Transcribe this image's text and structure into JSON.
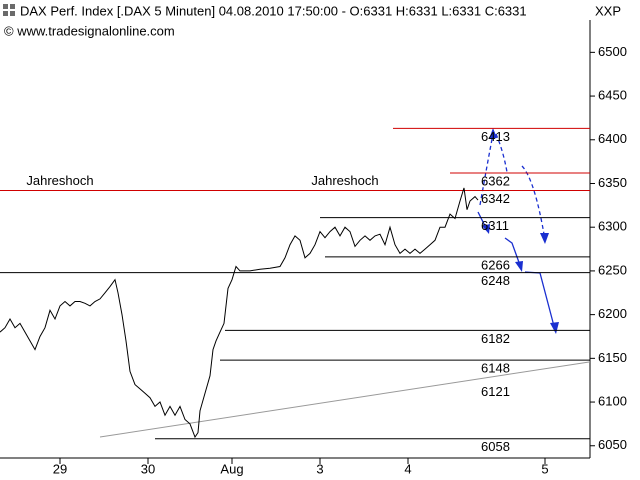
{
  "chart_data": {
    "type": "line",
    "title": "DAX Perf. Index [.DAX  5 Minuten] 04.08.2010 17:50:00 - O:6331 H:6331 L:6331 C:6331",
    "symbol": "XXP",
    "watermark": "© www.tradesignalonline.com",
    "color": "#000000",
    "xlim": [
      0,
      590
    ],
    "ylim": [
      6036,
      6537
    ],
    "yticks": [
      6050,
      6100,
      6150,
      6200,
      6250,
      6300,
      6350,
      6400,
      6450,
      6500
    ],
    "xticks": [
      {
        "value": 60,
        "label": "29"
      },
      {
        "value": 148,
        "label": "30"
      },
      {
        "value": 232,
        "label": "Aug"
      },
      {
        "value": 320,
        "label": "3"
      },
      {
        "value": 408,
        "label": "4"
      },
      {
        "value": 545,
        "label": "5"
      }
    ],
    "x": [
      0,
      5,
      10,
      15,
      20,
      25,
      30,
      35,
      40,
      45,
      50,
      55,
      60,
      65,
      70,
      75,
      80,
      85,
      90,
      95,
      100,
      105,
      110,
      115,
      118,
      122,
      126,
      130,
      135,
      140,
      145,
      150,
      155,
      160,
      165,
      170,
      175,
      180,
      185,
      190,
      195,
      198,
      200,
      205,
      210,
      213,
      216,
      220,
      224,
      228,
      232,
      236,
      240,
      250,
      260,
      270,
      280,
      285,
      290,
      295,
      300,
      305,
      310,
      315,
      320,
      325,
      330,
      335,
      340,
      345,
      350,
      355,
      360,
      365,
      370,
      375,
      380,
      385,
      390,
      395,
      400,
      405,
      410,
      415,
      420,
      425,
      430,
      435,
      440,
      445,
      450,
      455,
      460,
      464,
      467,
      470,
      475,
      478
    ],
    "values": [
      6180,
      6185,
      6195,
      6185,
      6190,
      6180,
      6170,
      6160,
      6175,
      6185,
      6205,
      6195,
      6210,
      6215,
      6210,
      6215,
      6215,
      6213,
      6210,
      6215,
      6218,
      6225,
      6232,
      6240,
      6225,
      6200,
      6170,
      6135,
      6120,
      6115,
      6110,
      6105,
      6095,
      6100,
      6085,
      6095,
      6085,
      6095,
      6080,
      6075,
      6060,
      6065,
      6090,
      6110,
      6130,
      6160,
      6170,
      6180,
      6190,
      6230,
      6240,
      6255,
      6250,
      6250,
      6252,
      6253,
      6255,
      6265,
      6280,
      6290,
      6285,
      6265,
      6270,
      6280,
      6295,
      6288,
      6295,
      6300,
      6290,
      6300,
      6295,
      6278,
      6285,
      6290,
      6285,
      6290,
      6292,
      6280,
      6300,
      6280,
      6270,
      6275,
      6270,
      6275,
      6270,
      6275,
      6280,
      6285,
      6300,
      6300,
      6315,
      6310,
      6330,
      6345,
      6320,
      6330,
      6335,
      6331
    ],
    "levels": [
      {
        "value": 6413,
        "label": "6413",
        "color": "#d00000",
        "x_from": 393
      },
      {
        "value": 6362,
        "label": "6362",
        "color": "#d00000",
        "x_from": 450
      },
      {
        "value": 6342,
        "label": "6342",
        "color": "#d00000",
        "x_from": 0
      },
      {
        "value": 6311,
        "label": "6311",
        "color": "#000000",
        "x_from": 320
      },
      {
        "value": 6266,
        "label": "6266",
        "color": "#000000",
        "x_from": 325
      },
      {
        "value": 6248,
        "label": "6248",
        "color": "#000000",
        "x_from": 0
      },
      {
        "value": 6182,
        "label": "6182",
        "color": "#000000",
        "x_from": 225
      },
      {
        "value": 6148,
        "label": "6148",
        "color": "#000000",
        "x_from": 220
      },
      {
        "value": 6058,
        "label": "6058",
        "color": "#000000",
        "x_from": 155
      }
    ],
    "trendline": {
      "x": [
        100,
        590
      ],
      "values": [
        6060,
        6146
      ],
      "label": "6121",
      "color": "#999999"
    },
    "annotations": [
      {
        "text": "Jahreshoch",
        "x": 60
      },
      {
        "text": "Jahreshoch",
        "x": 345
      }
    ]
  }
}
